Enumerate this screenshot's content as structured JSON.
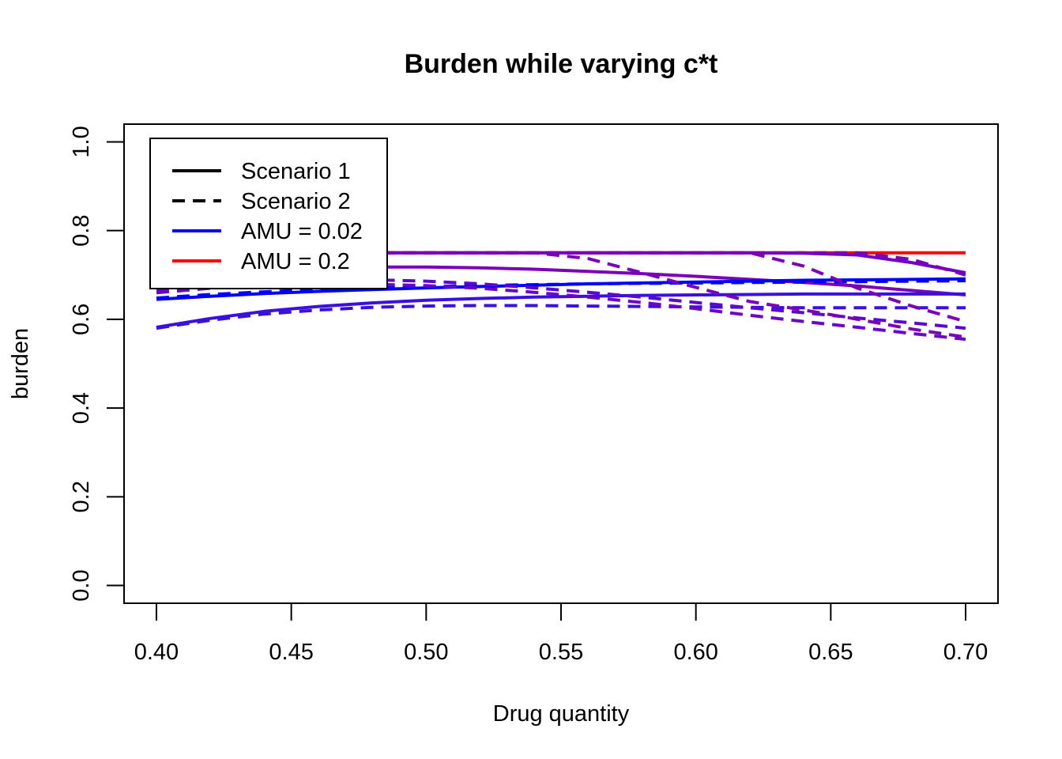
{
  "chart_data": {
    "type": "line",
    "title": "Burden while varying c*t",
    "xlabel": "Drug quantity",
    "ylabel": "burden",
    "xlim": [
      0.388,
      0.712
    ],
    "ylim": [
      -0.04,
      1.04
    ],
    "xticks": [
      0.4,
      0.45,
      0.5,
      0.55,
      0.6,
      0.65,
      0.7
    ],
    "xtick_labels": [
      "0.40",
      "0.45",
      "0.50",
      "0.55",
      "0.60",
      "0.65",
      "0.70"
    ],
    "yticks": [
      0.0,
      0.2,
      0.4,
      0.6,
      0.8,
      1.0
    ],
    "ytick_labels": [
      "0.0",
      "0.2",
      "0.4",
      "0.6",
      "0.8",
      "1.0"
    ],
    "grid": false,
    "legend": {
      "position": "top-left",
      "entries": [
        {
          "label": "Scenario 1",
          "color": "#000000",
          "dash": "solid"
        },
        {
          "label": "Scenario 2",
          "color": "#000000",
          "dash": "dashed"
        },
        {
          "label": "AMU = 0.02",
          "color": "#0000FF",
          "dash": "solid"
        },
        {
          "label": "AMU = 0.2",
          "color": "#FF0000",
          "dash": "solid"
        }
      ]
    },
    "x": [
      0.4,
      0.42,
      0.44,
      0.46,
      0.48,
      0.5,
      0.52,
      0.54,
      0.56,
      0.58,
      0.6,
      0.62,
      0.64,
      0.66,
      0.68,
      0.7
    ],
    "series": [
      {
        "color": "#FF0000",
        "dash": "solid",
        "values": [
          0.75,
          0.75,
          0.75,
          0.75,
          0.75,
          0.75,
          0.75,
          0.75,
          0.75,
          0.75,
          0.75,
          0.75,
          0.75,
          0.75,
          0.75,
          0.75
        ]
      },
      {
        "color": "#7A00B8",
        "dash": "solid",
        "values": [
          0.7,
          0.708,
          0.713,
          0.716,
          0.718,
          0.718,
          0.716,
          0.713,
          0.708,
          0.703,
          0.697,
          0.69,
          0.683,
          0.675,
          0.665,
          0.655
        ]
      },
      {
        "color": "#6E00C8",
        "dash": "solid",
        "values": [
          0.745,
          0.748,
          0.749,
          0.75,
          0.75,
          0.75,
          0.75,
          0.75,
          0.75,
          0.75,
          0.75,
          0.75,
          0.749,
          0.745,
          0.728,
          0.705
        ]
      },
      {
        "color": "#0000FF",
        "dash": "solid",
        "values": [
          0.645,
          0.652,
          0.658,
          0.663,
          0.667,
          0.671,
          0.674,
          0.677,
          0.68,
          0.682,
          0.684,
          0.686,
          0.688,
          0.689,
          0.69,
          0.691
        ]
      },
      {
        "color": "#3A10E0",
        "dash": "solid",
        "values": [
          0.582,
          0.602,
          0.618,
          0.629,
          0.637,
          0.643,
          0.647,
          0.65,
          0.652,
          0.654,
          0.655,
          0.656,
          0.657,
          0.657,
          0.657,
          0.657
        ]
      },
      {
        "color": "#0000FF",
        "dash": "dashed",
        "values": [
          0.648,
          0.656,
          0.662,
          0.667,
          0.671,
          0.674,
          0.676,
          0.678,
          0.68,
          0.681,
          0.682,
          0.683,
          0.684,
          0.685,
          0.686,
          0.687
        ]
      },
      {
        "color": "#3A10E0",
        "dash": "dashed",
        "values": [
          0.58,
          0.598,
          0.612,
          0.621,
          0.627,
          0.63,
          0.631,
          0.631,
          0.63,
          0.629,
          0.628,
          0.627,
          0.626,
          0.626,
          0.626,
          0.626
        ]
      },
      {
        "color": "#5A08D0",
        "dash": "dashed",
        "values": [
          0.665,
          0.676,
          0.684,
          0.688,
          0.689,
          0.686,
          0.68,
          0.671,
          0.661,
          0.65,
          0.638,
          0.626,
          0.615,
          0.603,
          0.592,
          0.58
        ]
      },
      {
        "color": "#6A04C8",
        "dash": "dashed",
        "values": [
          0.66,
          0.67,
          0.676,
          0.679,
          0.679,
          0.676,
          0.67,
          0.661,
          0.65,
          0.638,
          0.624,
          0.609,
          0.595,
          0.582,
          0.568,
          0.555
        ]
      },
      {
        "color": "#7A00B8",
        "dash": "dashed",
        "values": [
          0.75,
          0.75,
          0.75,
          0.75,
          0.75,
          0.75,
          0.75,
          0.75,
          0.737,
          0.705,
          0.672,
          0.64,
          0.621,
          0.6,
          0.578,
          0.56
        ]
      },
      {
        "color": "#7A00B8",
        "dash": "dashed",
        "values": [
          0.75,
          0.75,
          0.75,
          0.75,
          0.75,
          0.75,
          0.75,
          0.75,
          0.75,
          0.75,
          0.75,
          0.75,
          0.72,
          0.67,
          0.63,
          0.595
        ]
      },
      {
        "color": "#7A00B8",
        "dash": "dashed",
        "values": [
          0.75,
          0.75,
          0.75,
          0.75,
          0.75,
          0.75,
          0.75,
          0.75,
          0.75,
          0.75,
          0.75,
          0.75,
          0.75,
          0.75,
          0.735,
          0.7
        ]
      }
    ]
  }
}
